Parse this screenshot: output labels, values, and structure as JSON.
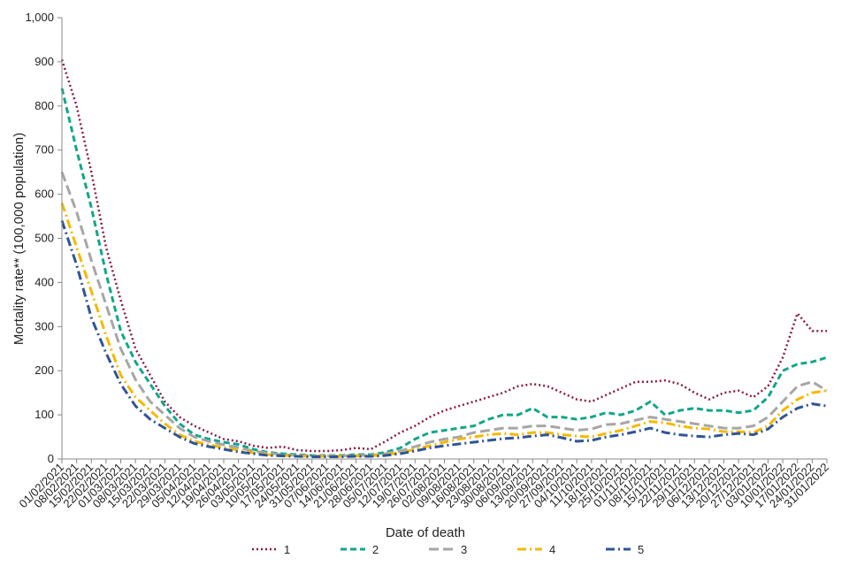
{
  "chart_data": {
    "type": "line",
    "title": "",
    "xlabel": "Date of death",
    "ylabel": "Mortality rate** (100,000 population)",
    "ylim": [
      0,
      1000
    ],
    "yticks": [
      "0",
      "100",
      "200",
      "300",
      "400",
      "500",
      "600",
      "700",
      "800",
      "900",
      "1,000"
    ],
    "grid": false,
    "legend": "bottom",
    "x_tick_labels": [
      "01/02/2021",
      "08/02/2021",
      "15/02/2021",
      "22/02/2021",
      "01/03/2021",
      "08/03/2021",
      "15/03/2021",
      "22/03/2021",
      "29/03/2021",
      "05/04/2021",
      "12/04/2021",
      "19/04/2021",
      "26/04/2021",
      "03/05/2021",
      "10/05/2021",
      "17/05/2021",
      "24/05/2021",
      "31/05/2021",
      "07/06/2021",
      "14/06/2021",
      "21/06/2021",
      "28/06/2021",
      "05/07/2021",
      "12/07/2021",
      "19/07/2021",
      "26/07/2021",
      "02/08/2021",
      "09/08/2021",
      "16/08/2021",
      "23/08/2021",
      "30/08/2021",
      "06/09/2021",
      "13/09/2021",
      "20/09/2021",
      "27/09/2021",
      "04/10/2021",
      "11/10/2021",
      "18/10/2021",
      "25/10/2021",
      "01/11/2021",
      "08/11/2021",
      "15/11/2021",
      "22/11/2021",
      "29/11/2021",
      "06/12/2021",
      "13/12/2021",
      "20/12/2021",
      "27/12/2021",
      "03/01/2022",
      "10/01/2022",
      "17/01/2022",
      "24/01/2022",
      "31/01/2022"
    ],
    "series": [
      {
        "name": "1",
        "color": "#8B1A4A",
        "dash": "dot",
        "values": [
          905,
          800,
          650,
          480,
          360,
          250,
          190,
          130,
          95,
          75,
          60,
          45,
          40,
          30,
          25,
          28,
          20,
          18,
          18,
          20,
          25,
          22,
          40,
          60,
          75,
          95,
          110,
          120,
          130,
          140,
          150,
          165,
          170,
          165,
          150,
          135,
          130,
          145,
          160,
          175,
          175,
          178,
          170,
          150,
          135,
          150,
          155,
          140,
          165,
          230,
          330,
          290,
          290
        ]
      },
      {
        "name": "2",
        "color": "#12A68A",
        "dash": "dash",
        "values": [
          840,
          700,
          570,
          420,
          290,
          220,
          170,
          120,
          80,
          55,
          45,
          38,
          33,
          22,
          15,
          12,
          10,
          8,
          8,
          8,
          10,
          10,
          15,
          25,
          45,
          60,
          65,
          70,
          75,
          90,
          100,
          100,
          115,
          95,
          95,
          90,
          95,
          105,
          100,
          110,
          130,
          100,
          110,
          115,
          110,
          110,
          105,
          110,
          140,
          200,
          215,
          220,
          230
        ]
      },
      {
        "name": "3",
        "color": "#A6A6A6",
        "dash": "longdash",
        "values": [
          650,
          560,
          450,
          350,
          250,
          180,
          130,
          100,
          70,
          50,
          40,
          32,
          26,
          18,
          13,
          10,
          8,
          7,
          7,
          7,
          8,
          8,
          12,
          18,
          28,
          38,
          45,
          50,
          60,
          65,
          70,
          70,
          75,
          75,
          70,
          65,
          68,
          78,
          80,
          88,
          95,
          90,
          85,
          80,
          75,
          70,
          70,
          75,
          95,
          130,
          165,
          175,
          155
        ]
      },
      {
        "name": "4",
        "color": "#F5B800",
        "dash": "dashdot",
        "values": [
          580,
          480,
          380,
          280,
          190,
          140,
          110,
          80,
          55,
          40,
          32,
          26,
          20,
          14,
          10,
          8,
          7,
          6,
          6,
          6,
          7,
          7,
          10,
          14,
          22,
          30,
          38,
          45,
          50,
          55,
          58,
          55,
          60,
          60,
          55,
          52,
          50,
          58,
          65,
          75,
          85,
          82,
          75,
          70,
          68,
          62,
          62,
          60,
          75,
          110,
          135,
          150,
          155
        ]
      },
      {
        "name": "5",
        "color": "#2F5597",
        "dash": "dashdot",
        "values": [
          540,
          440,
          320,
          240,
          170,
          120,
          90,
          70,
          50,
          35,
          28,
          22,
          16,
          12,
          8,
          7,
          6,
          5,
          5,
          5,
          6,
          6,
          8,
          12,
          18,
          25,
          30,
          34,
          38,
          42,
          46,
          48,
          52,
          55,
          48,
          40,
          42,
          50,
          55,
          62,
          70,
          60,
          55,
          52,
          50,
          55,
          58,
          55,
          68,
          95,
          115,
          125,
          120
        ]
      }
    ]
  }
}
